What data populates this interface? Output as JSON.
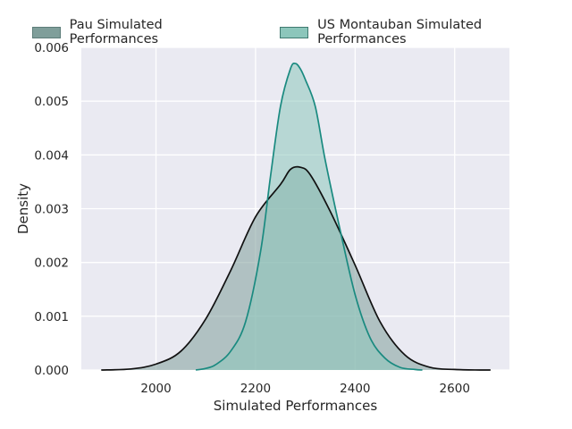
{
  "chart_data": {
    "type": "area",
    "xlabel": "Simulated Performances",
    "ylabel": "Density",
    "xlim": [
      1850,
      2710
    ],
    "ylim": [
      0,
      0.006
    ],
    "xticks": [
      2000,
      2200,
      2400,
      2600
    ],
    "xtick_labels": [
      "2000",
      "2200",
      "2400",
      "2600"
    ],
    "yticks": [
      0,
      0.001,
      0.002,
      0.003,
      0.004,
      0.005,
      0.006
    ],
    "ytick_labels": [
      "0.000",
      "0.001",
      "0.002",
      "0.003",
      "0.004",
      "0.005",
      "0.006"
    ],
    "grid": true,
    "legend_position": "top-left",
    "series": [
      {
        "name": "Pau Simulated Performances",
        "fill": "#7f9e9a",
        "stroke": "#111111",
        "x": [
          1890,
          1950,
          2000,
          2050,
          2100,
          2150,
          2200,
          2250,
          2270,
          2290,
          2310,
          2350,
          2400,
          2450,
          2500,
          2550,
          2600,
          2650,
          2672
        ],
        "y": [
          0.0,
          2e-05,
          0.00011,
          0.00035,
          0.00095,
          0.00185,
          0.00285,
          0.00345,
          0.00373,
          0.00377,
          0.00363,
          0.00295,
          0.00195,
          0.0009,
          0.00028,
          5e-05,
          1e-05,
          0.0,
          0.0
        ]
      },
      {
        "name": "US Montauban Simulated Performances",
        "fill": "#8cc6bb",
        "stroke": "#1a8a80",
        "x": [
          2080,
          2100,
          2120,
          2150,
          2180,
          2210,
          2230,
          2250,
          2270,
          2280,
          2290,
          2300,
          2320,
          2340,
          2370,
          2400,
          2430,
          2460,
          2490,
          2520,
          2535
        ],
        "y": [
          0.0,
          3e-05,
          0.0001,
          0.00035,
          0.0009,
          0.0022,
          0.0036,
          0.0049,
          0.0056,
          0.0057,
          0.0056,
          0.0054,
          0.0049,
          0.0039,
          0.0026,
          0.0014,
          0.0006,
          0.00022,
          5e-05,
          1e-05,
          0.0
        ]
      }
    ]
  }
}
